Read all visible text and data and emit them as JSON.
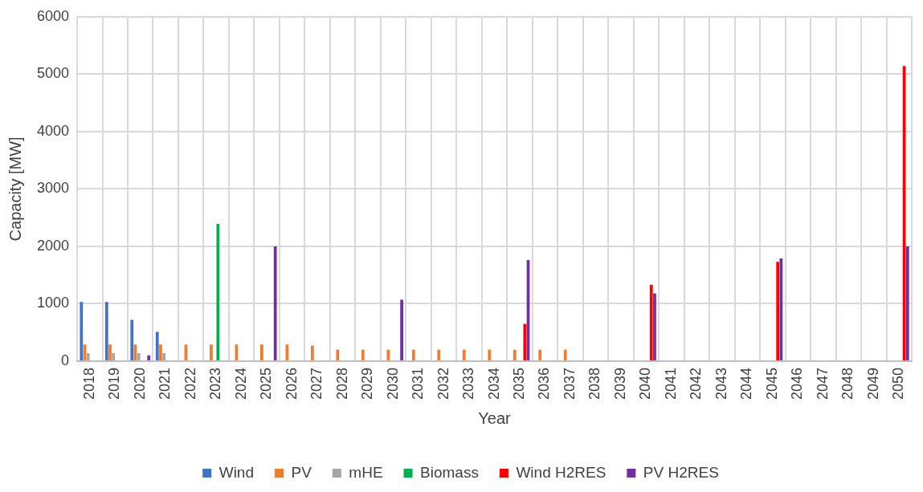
{
  "chart_data": {
    "type": "bar",
    "xlabel": "Year",
    "ylabel": "Capacity [MW]",
    "categories": [
      "2018",
      "2019",
      "2020",
      "2021",
      "2022",
      "2023",
      "2024",
      "2025",
      "2026",
      "2027",
      "2028",
      "2029",
      "2030",
      "2031",
      "2032",
      "2033",
      "2034",
      "2035",
      "2036",
      "2037",
      "2038",
      "2039",
      "2040",
      "2041",
      "2042",
      "2043",
      "2044",
      "2045",
      "2046",
      "2047",
      "2048",
      "2049",
      "2050"
    ],
    "series": [
      {
        "name": "Wind",
        "color": "#4472c4",
        "values": [
          1030,
          1030,
          720,
          510,
          null,
          null,
          null,
          null,
          null,
          null,
          null,
          null,
          null,
          null,
          null,
          null,
          null,
          null,
          null,
          null,
          null,
          null,
          null,
          null,
          null,
          null,
          null,
          null,
          null,
          null,
          null,
          null,
          null
        ]
      },
      {
        "name": "PV",
        "color": "#ed7d31",
        "values": [
          290,
          290,
          290,
          290,
          290,
          290,
          290,
          290,
          290,
          270,
          200,
          200,
          200,
          200,
          200,
          200,
          200,
          200,
          200,
          200,
          null,
          null,
          null,
          null,
          null,
          null,
          null,
          null,
          null,
          null,
          null,
          null,
          null
        ]
      },
      {
        "name": "mHE",
        "color": "#a5a5a5",
        "values": [
          140,
          140,
          140,
          140,
          null,
          null,
          null,
          null,
          null,
          null,
          null,
          null,
          null,
          null,
          null,
          null,
          null,
          null,
          null,
          null,
          null,
          null,
          null,
          null,
          null,
          null,
          null,
          null,
          null,
          null,
          null,
          null,
          null
        ]
      },
      {
        "name": "Biomass",
        "color": "#00b050",
        "values": [
          null,
          null,
          null,
          null,
          null,
          2390,
          null,
          null,
          null,
          null,
          null,
          null,
          null,
          null,
          null,
          null,
          null,
          null,
          null,
          null,
          null,
          null,
          null,
          null,
          null,
          null,
          null,
          null,
          null,
          null,
          null,
          null,
          null
        ]
      },
      {
        "name": "Wind H2RES",
        "color": "#ff0000",
        "values": [
          null,
          null,
          null,
          null,
          null,
          null,
          null,
          null,
          null,
          null,
          null,
          null,
          null,
          null,
          null,
          null,
          null,
          650,
          null,
          null,
          null,
          null,
          1330,
          null,
          null,
          null,
          null,
          1730,
          null,
          null,
          null,
          null,
          5140
        ]
      },
      {
        "name": "PV H2RES",
        "color": "#7030a0",
        "values": [
          null,
          null,
          100,
          null,
          null,
          null,
          null,
          2000,
          null,
          null,
          null,
          null,
          1070,
          null,
          null,
          null,
          null,
          1760,
          null,
          null,
          null,
          null,
          1180,
          null,
          null,
          null,
          null,
          1790,
          null,
          null,
          null,
          null,
          2000
        ]
      }
    ],
    "ylim": [
      0,
      6000
    ],
    "yticks": [
      0,
      1000,
      2000,
      3000,
      4000,
      5000,
      6000
    ],
    "grid": true,
    "legend": "bottom"
  }
}
